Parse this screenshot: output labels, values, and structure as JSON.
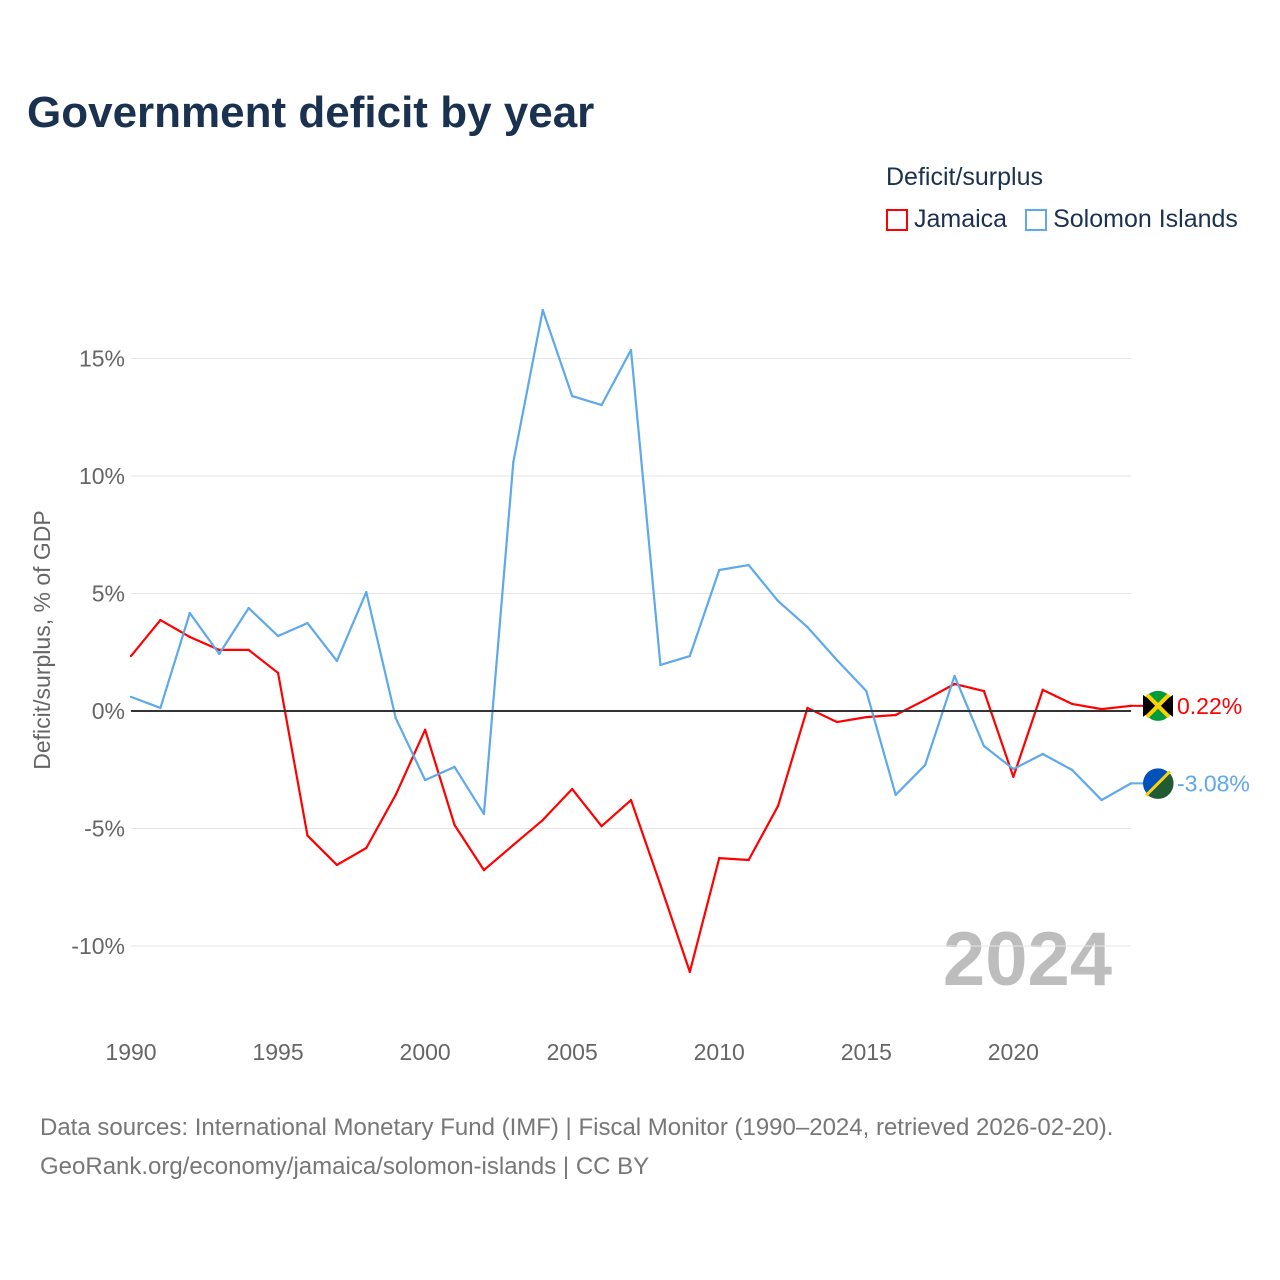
{
  "title": "Government deficit by year",
  "legend": {
    "title": "Deficit/surplus",
    "items": [
      {
        "label": "Jamaica",
        "color": "#ff0000"
      },
      {
        "label": "Solomon Islands",
        "color": "#5ea8ec"
      }
    ]
  },
  "source": {
    "line1": "Data sources: International Monetary Fund (IMF) | Fiscal Monitor (1990–2024, retrieved 2026-02-20).",
    "line2": "GeoRank.org/economy/jamaica/solomon-islands | CC BY"
  },
  "chart_data": {
    "type": "line",
    "title": "Government deficit by year",
    "xlabel": "",
    "ylabel": "Deficit/surplus, % of GDP",
    "xlim": [
      1990,
      2024
    ],
    "ylim": [
      -12,
      18
    ],
    "x_ticks": [
      1990,
      1995,
      2000,
      2005,
      2010,
      2015,
      2020
    ],
    "x_tick_labels": [
      "1990",
      "1995",
      "2000",
      "2005",
      "2010",
      "2015",
      "2020"
    ],
    "y_ticks": [
      15,
      10,
      5,
      0,
      -5,
      -10
    ],
    "y_tick_labels": [
      "15%",
      "10%",
      "5%",
      "0%",
      "-5%",
      "-10%"
    ],
    "grid": true,
    "legend_position": "top-right",
    "watermark": "2024",
    "x": [
      1990,
      1991,
      1992,
      1993,
      1994,
      1995,
      1996,
      1997,
      1998,
      1999,
      2000,
      2001,
      2002,
      2003,
      2004,
      2005,
      2006,
      2007,
      2008,
      2009,
      2010,
      2011,
      2012,
      2013,
      2014,
      2015,
      2016,
      2017,
      2018,
      2019,
      2020,
      2021,
      2022,
      2023,
      2024
    ],
    "series": [
      {
        "name": "Jamaica",
        "color": "#ff0000",
        "end_label": "0.22%",
        "values": [
          2.34,
          3.87,
          3.15,
          2.6,
          2.6,
          1.62,
          -5.3,
          -6.55,
          -5.83,
          -3.57,
          -0.8,
          -4.85,
          -6.77,
          -5.7,
          -4.64,
          -3.32,
          -4.9,
          -3.79,
          -7.4,
          -11.1,
          -6.26,
          -6.34,
          -4.04,
          0.13,
          -0.47,
          -0.26,
          -0.17,
          0.47,
          1.15,
          0.85,
          -2.8,
          0.9,
          0.3,
          0.08,
          0.22
        ]
      },
      {
        "name": "Solomon Islands",
        "color": "#5ea8ec",
        "end_label": "-3.08%",
        "values": [
          0.6,
          0.13,
          4.17,
          2.43,
          4.38,
          3.19,
          3.74,
          2.13,
          5.06,
          -0.3,
          -2.94,
          -2.38,
          -4.38,
          10.6,
          17.06,
          13.4,
          13.02,
          15.36,
          1.96,
          2.34,
          6.0,
          6.21,
          4.68,
          3.57,
          2.17,
          0.85,
          -3.57,
          -2.3,
          1.49,
          -1.49,
          -2.47,
          -1.83,
          -2.51,
          -3.79,
          -3.08
        ]
      }
    ]
  }
}
